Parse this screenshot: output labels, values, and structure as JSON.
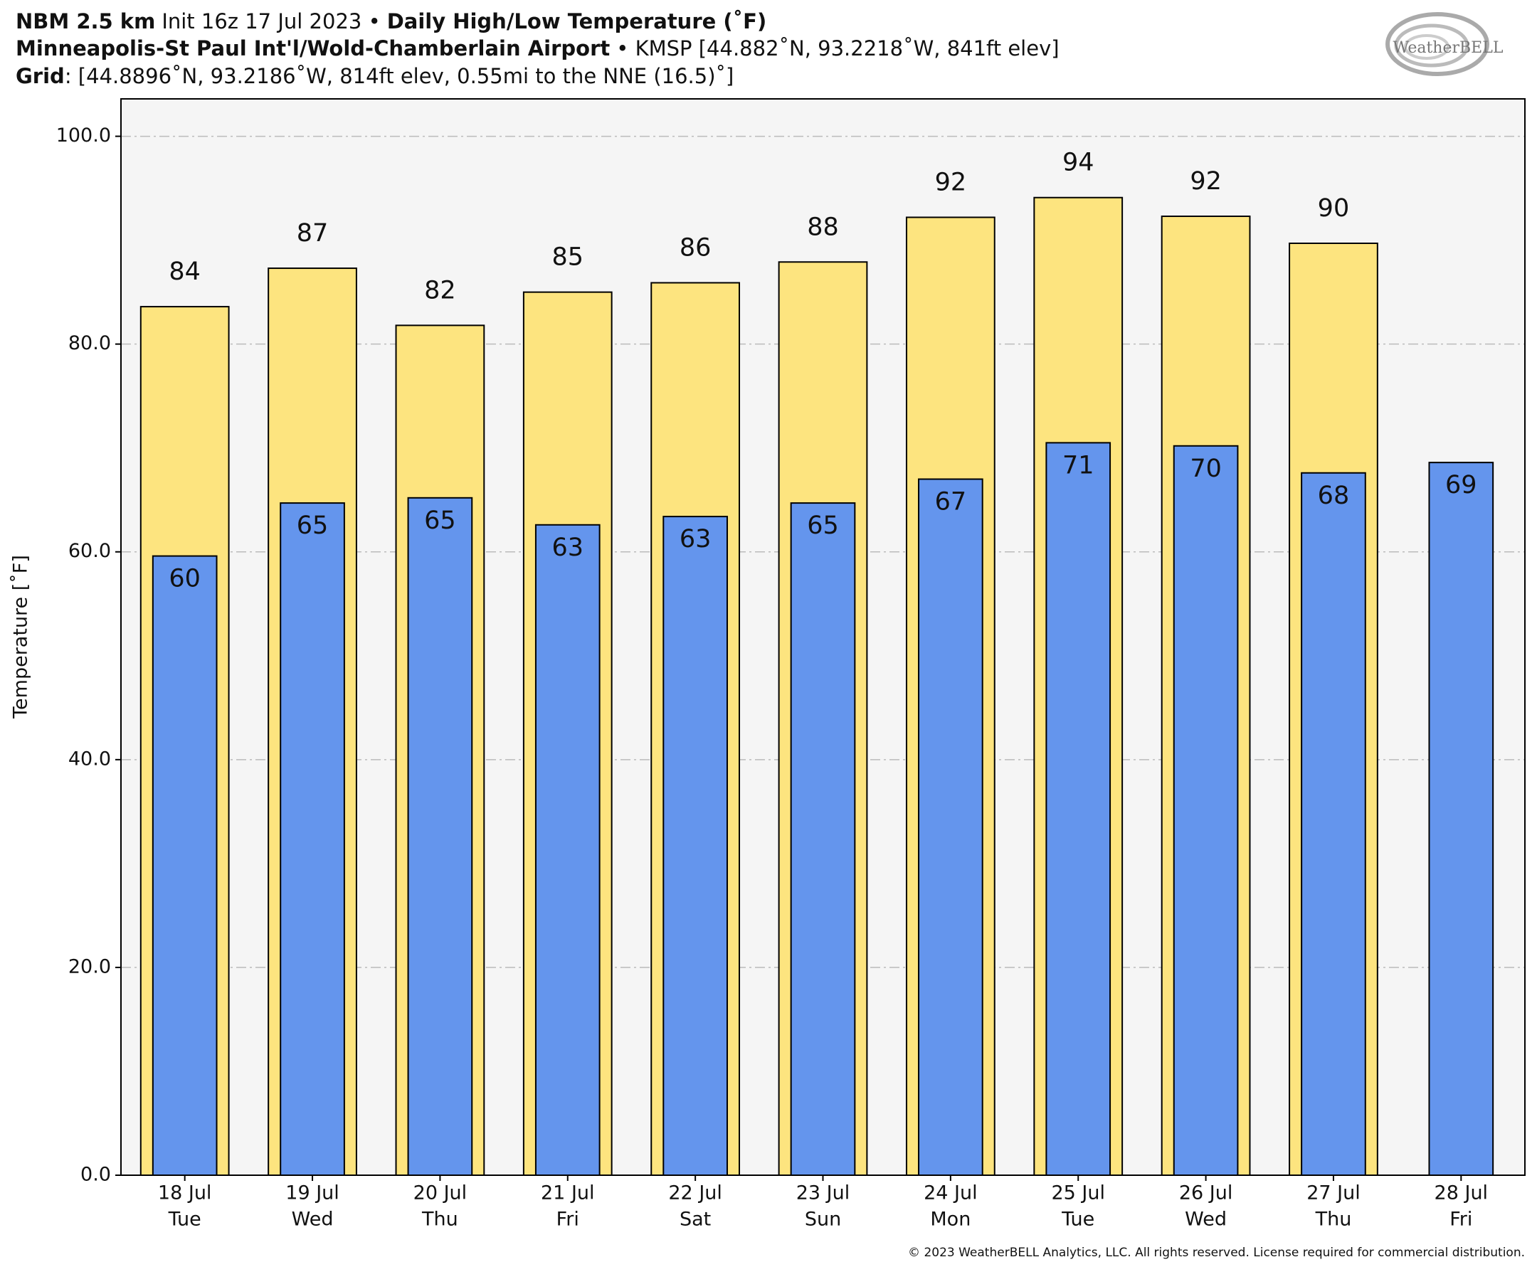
{
  "title": {
    "model": "NBM 2.5 km",
    "init": "Init 16z 17 Jul 2023 •",
    "product": "Daily High/Low Temperature (˚F)"
  },
  "subtitle": {
    "station": "Minneapolis-St Paul Int'l/Wold-Chamberlain Airport",
    "station_info": "• KMSP [44.882˚N, 93.2218˚W, 841ft elev]"
  },
  "grid_info": {
    "label": "Grid",
    "text": ": [44.8896˚N, 93.2186˚W, 814ft elev, 0.55mi to the NNE (16.5)˚]"
  },
  "logo": "WeatherBELL",
  "footer": "© 2023 WeatherBELL Analytics, LLC. All rights reserved. License required for commercial distribution.",
  "chart_data": {
    "type": "bar",
    "y_label": "Temperature [˚F]",
    "categories": [
      "18 Jul",
      "19 Jul",
      "20 Jul",
      "21 Jul",
      "22 Jul",
      "23 Jul",
      "24 Jul",
      "25 Jul",
      "26 Jul",
      "27 Jul",
      "28 Jul"
    ],
    "weekdays": [
      "Tue",
      "Wed",
      "Thu",
      "Fri",
      "Sat",
      "Sun",
      "Mon",
      "Tue",
      "Wed",
      "Thu",
      "Fri"
    ],
    "series": [
      {
        "name": "High",
        "color": "#fde47f",
        "values": [
          83.6,
          87.3,
          81.8,
          85.0,
          85.9,
          87.9,
          92.2,
          94.1,
          92.3,
          89.7,
          null
        ],
        "value_labels": [
          "84",
          "87",
          "82",
          "85",
          "86",
          "88",
          "92",
          "94",
          "92",
          "90",
          null
        ]
      },
      {
        "name": "Low",
        "color": "#6495ed",
        "values": [
          59.6,
          64.7,
          65.2,
          62.6,
          63.4,
          64.7,
          67.0,
          70.5,
          70.2,
          67.6,
          68.6
        ],
        "value_labels": [
          "60",
          "65",
          "65",
          "63",
          "63",
          "65",
          "67",
          "71",
          "70",
          "68",
          "69"
        ]
      }
    ],
    "ylim": [
      0,
      103.6
    ],
    "yticks": [
      {
        "value": 0,
        "label": "0.0"
      },
      {
        "value": 20,
        "label": "20.0"
      },
      {
        "value": 40,
        "label": "40.0"
      },
      {
        "value": 60,
        "label": "60.0"
      },
      {
        "value": 80,
        "label": "80.0"
      },
      {
        "value": 100,
        "label": "100.0"
      }
    ],
    "grid": true
  }
}
